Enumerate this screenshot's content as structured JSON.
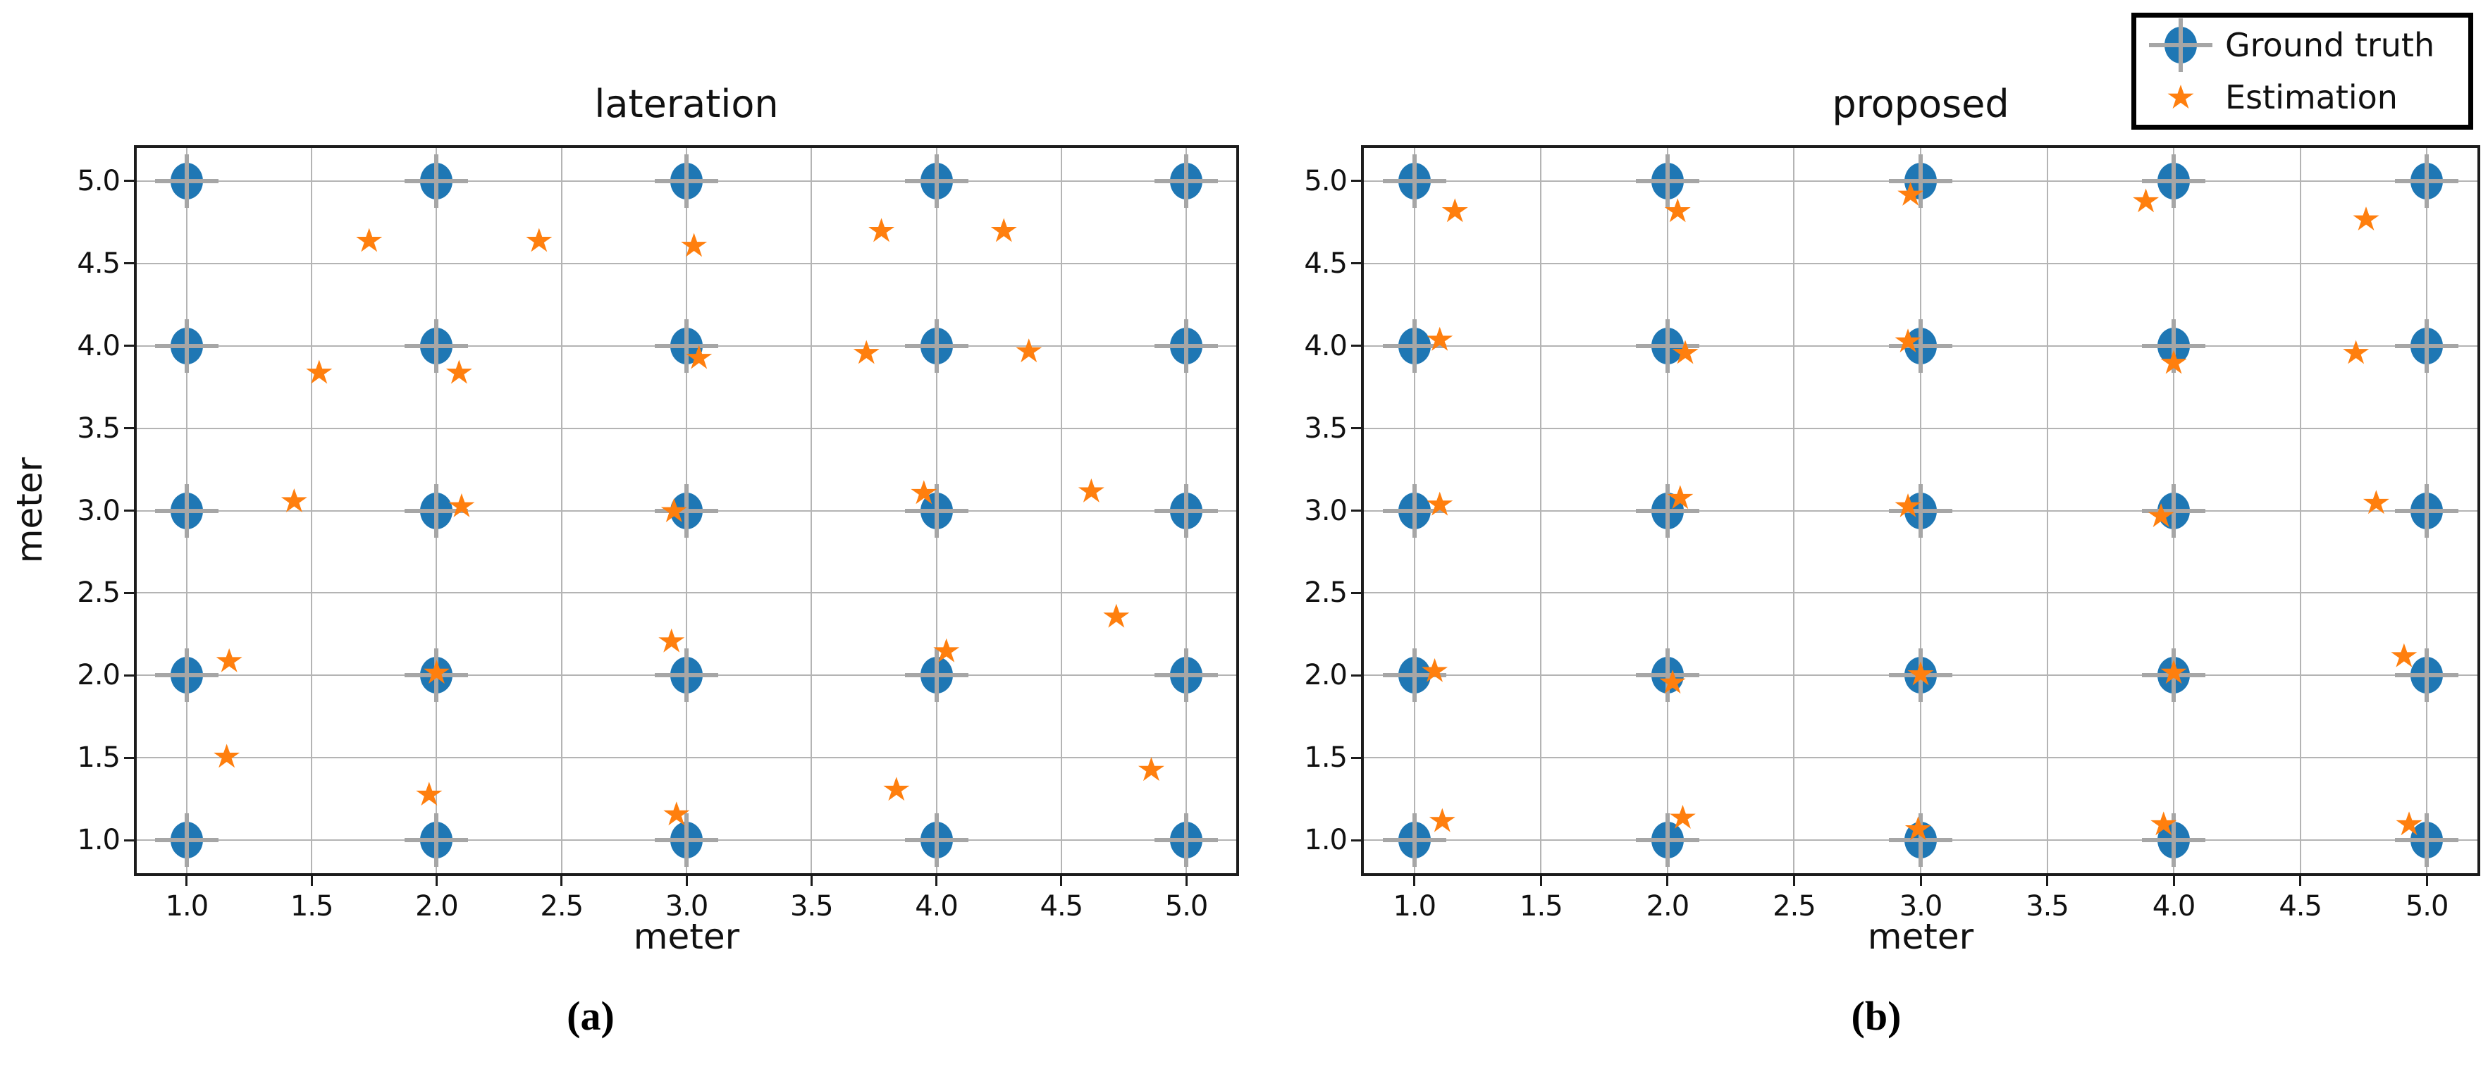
{
  "figure": {
    "captions": [
      {
        "label": "(a)"
      },
      {
        "label": "(b)"
      }
    ],
    "legend": {
      "items": [
        {
          "label": "Ground truth",
          "marker": "circle-plus"
        },
        {
          "label": "Estimation",
          "marker": "star"
        }
      ]
    }
  },
  "colors": {
    "ground_truth": "#1f77b4",
    "estimation": "#ff7f0e",
    "crosshair": "#a6a6a6",
    "grid": "#b4b4b4",
    "spine": "#1c1c1c",
    "text": "#111111",
    "background": "#ffffff"
  },
  "chart_data": [
    {
      "type": "scatter",
      "title": "lateration",
      "xlabel": "meter",
      "ylabel": "meter",
      "xlim": [
        0.8,
        5.2
      ],
      "ylim": [
        0.8,
        5.2
      ],
      "xticks": [
        1.0,
        1.5,
        2.0,
        2.5,
        3.0,
        3.5,
        4.0,
        4.5,
        5.0
      ],
      "yticks": [
        1.0,
        1.5,
        2.0,
        2.5,
        3.0,
        3.5,
        4.0,
        4.5,
        5.0
      ],
      "grid": true,
      "legend_position": "figure-top-right",
      "series": [
        {
          "name": "Ground truth",
          "marker": "circle-plus",
          "points": [
            [
              1,
              1
            ],
            [
              2,
              1
            ],
            [
              3,
              1
            ],
            [
              4,
              1
            ],
            [
              5,
              1
            ],
            [
              1,
              2
            ],
            [
              2,
              2
            ],
            [
              3,
              2
            ],
            [
              4,
              2
            ],
            [
              5,
              2
            ],
            [
              1,
              3
            ],
            [
              2,
              3
            ],
            [
              3,
              3
            ],
            [
              4,
              3
            ],
            [
              5,
              3
            ],
            [
              1,
              4
            ],
            [
              2,
              4
            ],
            [
              3,
              4
            ],
            [
              4,
              4
            ],
            [
              5,
              4
            ],
            [
              1,
              5
            ],
            [
              2,
              5
            ],
            [
              3,
              5
            ],
            [
              4,
              5
            ],
            [
              5,
              5
            ]
          ]
        },
        {
          "name": "Estimation",
          "marker": "star",
          "points": [
            [
              1.16,
              1.51
            ],
            [
              1.97,
              1.28
            ],
            [
              2.96,
              1.16
            ],
            [
              3.84,
              1.31
            ],
            [
              4.86,
              1.43
            ],
            [
              1.17,
              2.09
            ],
            [
              2.0,
              2.02
            ],
            [
              2.94,
              2.21
            ],
            [
              4.04,
              2.15
            ],
            [
              4.72,
              2.36
            ],
            [
              1.43,
              3.06
            ],
            [
              2.1,
              3.03
            ],
            [
              2.95,
              3.0
            ],
            [
              3.95,
              3.11
            ],
            [
              4.62,
              3.12
            ],
            [
              1.53,
              3.84
            ],
            [
              2.09,
              3.84
            ],
            [
              3.05,
              3.93
            ],
            [
              3.72,
              3.96
            ],
            [
              4.37,
              3.97
            ],
            [
              1.73,
              4.64
            ],
            [
              2.41,
              4.64
            ],
            [
              3.03,
              4.61
            ],
            [
              3.78,
              4.7
            ],
            [
              4.27,
              4.7
            ]
          ]
        }
      ]
    },
    {
      "type": "scatter",
      "title": "proposed",
      "xlabel": "meter",
      "ylabel": "",
      "xlim": [
        0.8,
        5.2
      ],
      "ylim": [
        0.8,
        5.2
      ],
      "xticks": [
        1.0,
        1.5,
        2.0,
        2.5,
        3.0,
        3.5,
        4.0,
        4.5,
        5.0
      ],
      "yticks": [
        1.0,
        1.5,
        2.0,
        2.5,
        3.0,
        3.5,
        4.0,
        4.5,
        5.0
      ],
      "grid": true,
      "legend_position": "figure-top-right",
      "series": [
        {
          "name": "Ground truth",
          "marker": "circle-plus",
          "points": [
            [
              1,
              1
            ],
            [
              2,
              1
            ],
            [
              3,
              1
            ],
            [
              4,
              1
            ],
            [
              5,
              1
            ],
            [
              1,
              2
            ],
            [
              2,
              2
            ],
            [
              3,
              2
            ],
            [
              4,
              2
            ],
            [
              5,
              2
            ],
            [
              1,
              3
            ],
            [
              2,
              3
            ],
            [
              3,
              3
            ],
            [
              4,
              3
            ],
            [
              5,
              3
            ],
            [
              1,
              4
            ],
            [
              2,
              4
            ],
            [
              3,
              4
            ],
            [
              4,
              4
            ],
            [
              5,
              4
            ],
            [
              1,
              5
            ],
            [
              2,
              5
            ],
            [
              3,
              5
            ],
            [
              4,
              5
            ],
            [
              5,
              5
            ]
          ]
        },
        {
          "name": "Estimation",
          "marker": "star",
          "points": [
            [
              1.11,
              1.12
            ],
            [
              2.06,
              1.14
            ],
            [
              2.99,
              1.07
            ],
            [
              3.96,
              1.1
            ],
            [
              4.93,
              1.1
            ],
            [
              1.08,
              2.03
            ],
            [
              2.02,
              1.96
            ],
            [
              3.0,
              2.01
            ],
            [
              4.0,
              2.02
            ],
            [
              4.91,
              2.12
            ],
            [
              1.1,
              3.04
            ],
            [
              2.05,
              3.08
            ],
            [
              2.95,
              3.03
            ],
            [
              3.95,
              2.97
            ],
            [
              4.8,
              3.05
            ],
            [
              1.1,
              4.04
            ],
            [
              2.07,
              3.96
            ],
            [
              2.95,
              4.03
            ],
            [
              4.0,
              3.9
            ],
            [
              4.72,
              3.96
            ],
            [
              1.16,
              4.82
            ],
            [
              2.04,
              4.82
            ],
            [
              2.96,
              4.92
            ],
            [
              3.89,
              4.88
            ],
            [
              4.76,
              4.77
            ]
          ]
        }
      ]
    }
  ]
}
